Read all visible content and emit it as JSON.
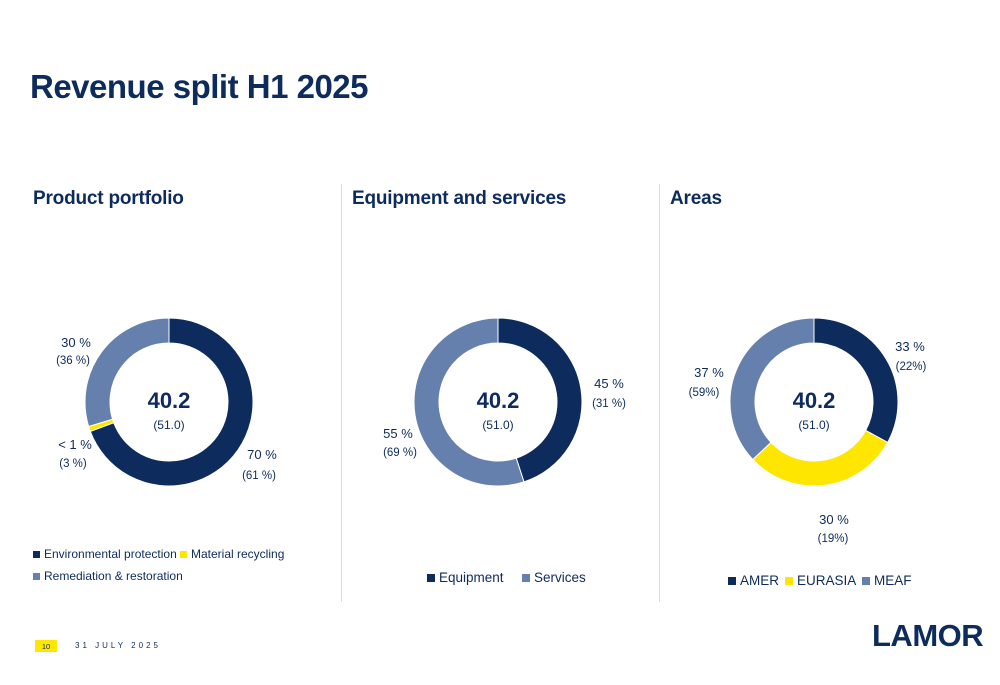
{
  "title": "Revenue split H1 2025",
  "footer": {
    "page_number": "10",
    "date": "31 JULY 2025",
    "logo": "LAMOR"
  },
  "colors": {
    "navy": "#0d2b5c",
    "yellow": "#ffe600",
    "slate": "#6680ad"
  },
  "chart_data": [
    {
      "type": "pie",
      "title": "Product portfolio",
      "center_value": "40.2",
      "center_previous": "(51.0)",
      "series": [
        {
          "name": "Environmental protection",
          "value": 70,
          "previous": 61,
          "label": "70 %",
          "sublabel": "(61 %)",
          "color": "#0d2b5c"
        },
        {
          "name": "Material recycling",
          "value": 1,
          "previous": 3,
          "label": "< 1 %",
          "sublabel": "(3 %)",
          "color": "#ffe600"
        },
        {
          "name": "Remediation & restoration",
          "value": 30,
          "previous": 36,
          "label": "30 %",
          "sublabel": "(36 %)",
          "color": "#6680ad"
        }
      ],
      "legend": [
        "Environmental protection",
        "Material recycling",
        "Remediation & restoration"
      ]
    },
    {
      "type": "pie",
      "title": "Equipment and services",
      "center_value": "40.2",
      "center_previous": "(51.0)",
      "series": [
        {
          "name": "Equipment",
          "value": 45,
          "previous": 31,
          "label": "45 %",
          "sublabel": "(31 %)",
          "color": "#0d2b5c"
        },
        {
          "name": "Services",
          "value": 55,
          "previous": 69,
          "label": "55 %",
          "sublabel": "(69 %)",
          "color": "#6680ad"
        }
      ],
      "legend": [
        "Equipment",
        "Services"
      ]
    },
    {
      "type": "pie",
      "title": "Areas",
      "center_value": "40.2",
      "center_previous": "(51.0)",
      "series": [
        {
          "name": "AMER",
          "value": 33,
          "previous": 22,
          "label": "33 %",
          "sublabel": "(22%)",
          "color": "#0d2b5c"
        },
        {
          "name": "EURASIA",
          "value": 30,
          "previous": 19,
          "label": "30 %",
          "sublabel": "(19%)",
          "color": "#ffe600"
        },
        {
          "name": "MEAF",
          "value": 37,
          "previous": 59,
          "label": "37 %",
          "sublabel": "(59%)",
          "color": "#6680ad"
        }
      ],
      "legend": [
        "AMER",
        "EURASIA",
        "MEAF"
      ]
    }
  ]
}
